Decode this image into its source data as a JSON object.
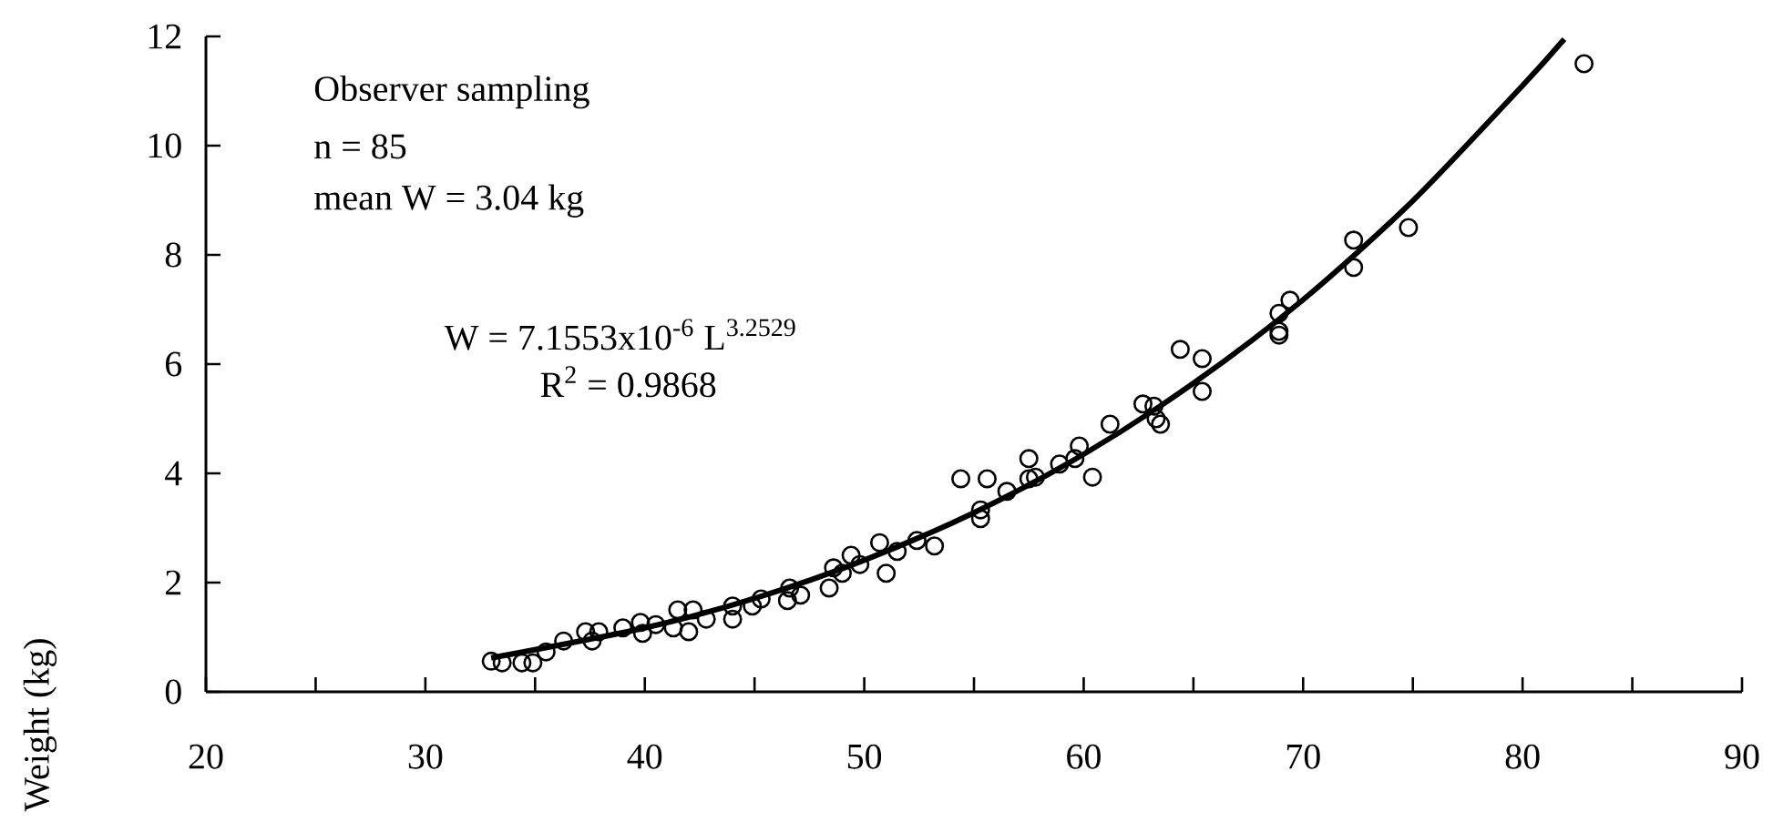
{
  "chart_data": {
    "type": "scatter",
    "ylabel": "Weight (kg)",
    "xlim": [
      20,
      90
    ],
    "ylim": [
      0,
      12
    ],
    "xticks": [
      20,
      {
        "value": 25,
        "label": null
      },
      30,
      {
        "value": 35,
        "label": null
      },
      40,
      {
        "value": 45,
        "label": null
      },
      50,
      {
        "value": 55,
        "label": null
      },
      60,
      {
        "value": 65,
        "label": null
      },
      70,
      {
        "value": 75,
        "label": null
      },
      80,
      {
        "value": 85,
        "label": null
      },
      90
    ],
    "yticks": [
      0,
      2,
      4,
      6,
      8,
      10,
      12
    ],
    "annotations": [
      "Observer sampling",
      "n = 85",
      "mean W = 3.04 kg",
      "W = 7.1553x10$^{-6}$ L$^{3.2529}$",
      "R$^{2}$ = 0.9868"
    ],
    "series": [
      {
        "marker": "circle",
        "color": "#000000",
        "x": [
          33.0,
          33.5,
          34.4,
          34.9,
          35.5,
          36.3,
          37.3,
          37.6,
          37.9,
          39.0,
          39.8,
          39.9,
          40.5,
          41.5,
          42.2,
          41.3,
          42.0,
          42.8,
          44.0,
          44.0,
          44.9,
          45.3,
          46.5,
          46.6,
          47.1,
          48.4,
          48.6,
          49.0,
          49.4,
          49.8,
          50.7,
          51.0,
          51.5,
          52.4,
          53.2,
          54.4,
          55.6,
          55.3,
          55.3,
          56.5,
          57.5,
          57.5,
          57.8,
          58.9,
          59.6,
          59.8,
          60.4,
          61.2,
          62.7,
          63.2,
          63.3,
          63.5,
          64.4,
          65.4,
          65.4,
          68.9,
          69.4,
          68.9,
          68.9,
          72.3,
          72.3,
          74.8,
          82.8
        ],
        "values": [
          0.56,
          0.53,
          0.53,
          0.53,
          0.73,
          0.93,
          1.1,
          0.93,
          1.1,
          1.17,
          1.27,
          1.07,
          1.23,
          1.5,
          1.5,
          1.17,
          1.1,
          1.33,
          1.57,
          1.33,
          1.57,
          1.7,
          1.67,
          1.9,
          1.77,
          1.9,
          2.27,
          2.17,
          2.5,
          2.33,
          2.73,
          2.17,
          2.57,
          2.77,
          2.67,
          3.9,
          3.9,
          3.33,
          3.17,
          3.67,
          4.27,
          3.9,
          3.93,
          4.17,
          4.27,
          4.5,
          3.93,
          4.9,
          5.27,
          5.23,
          5.0,
          4.9,
          6.27,
          6.1,
          5.5,
          6.93,
          7.17,
          6.6,
          6.53,
          8.27,
          7.77,
          8.5,
          11.5
        ]
      },
      {
        "type": "line",
        "color": "#000000",
        "x": [
          33,
          40,
          45,
          50,
          55,
          60,
          65,
          70,
          75,
          80,
          81.9
        ],
        "values": [
          0.62,
          1.17,
          1.71,
          2.41,
          3.28,
          4.35,
          5.65,
          7.18,
          8.99,
          11.1,
          11.95
        ]
      }
    ]
  }
}
